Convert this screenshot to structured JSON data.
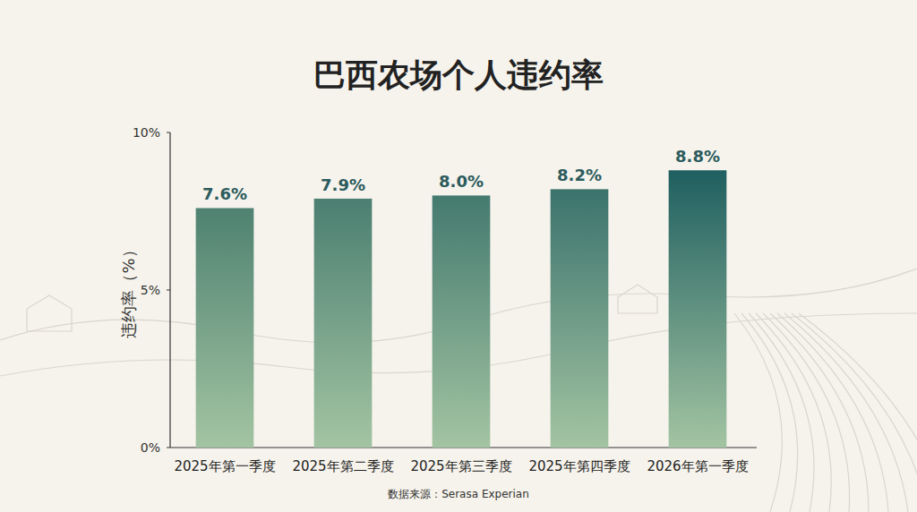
{
  "chart_data": {
    "type": "bar",
    "title": "巴西农场个人违约率",
    "y_label": "违约率（%）",
    "source": "数据来源：Serasa Experian",
    "categories": [
      "2025年第一季度",
      "2025年第二季度",
      "2025年第三季度",
      "2025年第四季度",
      "2026年第一季度"
    ],
    "values": [
      7.6,
      7.9,
      8.0,
      8.2,
      8.8
    ],
    "value_labels": [
      "7.6%",
      "7.9%",
      "8.0%",
      "8.2%",
      "8.8%"
    ],
    "colors": [
      "#4f8271",
      "#4b7f71",
      "#447a6f",
      "#3b736d",
      "#1f5f60"
    ],
    "ylim": [
      0,
      10
    ],
    "yticks": [
      {
        "value": 0,
        "label": "0%"
      },
      {
        "value": 5,
        "label": "5%"
      },
      {
        "value": 10,
        "label": "10%"
      }
    ],
    "grid": false,
    "data_labels": true
  }
}
